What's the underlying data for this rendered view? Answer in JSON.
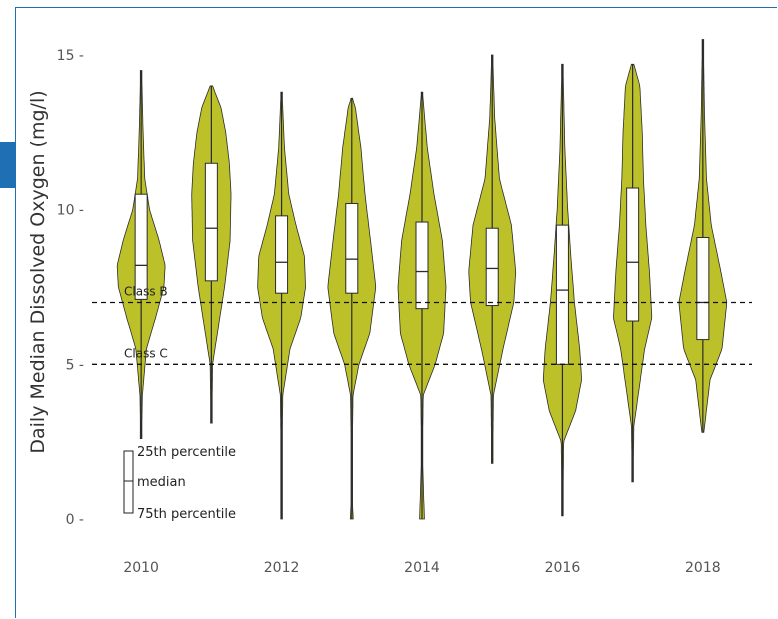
{
  "chart_data": {
    "type": "violin",
    "title": "",
    "xlabel": "",
    "ylabel": "Daily Median Dissolved Oxygen (mg/l)",
    "ylim": [
      0,
      16
    ],
    "xlim": [
      2009.3,
      2018.7
    ],
    "yticks": [
      0,
      5,
      10,
      15
    ],
    "ytick_labels": [
      "0 -",
      "5 -",
      "10 -",
      "15 -"
    ],
    "xticks": [
      2010,
      2012,
      2014,
      2016,
      2018
    ],
    "xtick_labels": [
      "2010",
      "2012",
      "2014",
      "2016",
      "2018"
    ],
    "grid": false,
    "fill_color": "#bcc12a",
    "reference_lines": [
      {
        "label": "Class B",
        "y": 7
      },
      {
        "label": "Class C",
        "y": 5
      }
    ],
    "legend": {
      "top": "25th percentile",
      "middle": "median",
      "bottom": "75th percentile",
      "placement": "bottom-left"
    },
    "series": [
      {
        "x": 2010,
        "min": 2.6,
        "max": 14.5,
        "q1": 7.1,
        "median": 8.2,
        "q3": 10.5,
        "profile": [
          [
            2.6,
            0.02
          ],
          [
            4.0,
            0.05
          ],
          [
            5.5,
            0.22
          ],
          [
            6.5,
            0.6
          ],
          [
            7.5,
            0.95
          ],
          [
            8.2,
            1.0
          ],
          [
            9.0,
            0.75
          ],
          [
            10.0,
            0.35
          ],
          [
            11.0,
            0.15
          ],
          [
            12.5,
            0.08
          ],
          [
            14.5,
            0.02
          ]
        ]
      },
      {
        "x": 2011,
        "min": 3.1,
        "max": 14.0,
        "q1": 7.7,
        "median": 9.4,
        "q3": 11.5,
        "profile": [
          [
            3.1,
            0.02
          ],
          [
            5.0,
            0.05
          ],
          [
            6.0,
            0.25
          ],
          [
            7.5,
            0.55
          ],
          [
            9.0,
            0.78
          ],
          [
            10.5,
            0.82
          ],
          [
            11.5,
            0.75
          ],
          [
            12.5,
            0.6
          ],
          [
            13.3,
            0.4
          ],
          [
            14.0,
            0.05
          ]
        ]
      },
      {
        "x": 2012,
        "min": 0.0,
        "max": 13.8,
        "q1": 7.3,
        "median": 8.3,
        "q3": 9.8,
        "profile": [
          [
            0.0,
            0.02
          ],
          [
            2.0,
            0.02
          ],
          [
            4.0,
            0.05
          ],
          [
            5.5,
            0.35
          ],
          [
            6.5,
            0.8
          ],
          [
            7.5,
            1.0
          ],
          [
            8.5,
            0.95
          ],
          [
            9.5,
            0.6
          ],
          [
            10.5,
            0.3
          ],
          [
            12.0,
            0.12
          ],
          [
            13.8,
            0.02
          ]
        ]
      },
      {
        "x": 2013,
        "min": 0.0,
        "max": 13.6,
        "q1": 7.3,
        "median": 8.4,
        "q3": 10.2,
        "profile": [
          [
            0.0,
            0.06
          ],
          [
            0.5,
            0.03
          ],
          [
            2.0,
            0.02
          ],
          [
            4.0,
            0.05
          ],
          [
            5.0,
            0.3
          ],
          [
            6.0,
            0.75
          ],
          [
            7.5,
            1.0
          ],
          [
            9.0,
            0.78
          ],
          [
            10.5,
            0.55
          ],
          [
            12.0,
            0.38
          ],
          [
            13.3,
            0.15
          ],
          [
            13.6,
            0.02
          ]
        ]
      },
      {
        "x": 2014,
        "min": 0.0,
        "max": 13.8,
        "q1": 6.8,
        "median": 8.0,
        "q3": 9.6,
        "profile": [
          [
            0.0,
            0.1
          ],
          [
            1.0,
            0.06
          ],
          [
            2.0,
            0.02
          ],
          [
            4.0,
            0.05
          ],
          [
            5.0,
            0.55
          ],
          [
            6.0,
            0.9
          ],
          [
            7.5,
            1.0
          ],
          [
            9.0,
            0.85
          ],
          [
            10.5,
            0.5
          ],
          [
            12.0,
            0.22
          ],
          [
            13.8,
            0.02
          ]
        ]
      },
      {
        "x": 2015,
        "min": 1.8,
        "max": 15.0,
        "q1": 6.9,
        "median": 8.1,
        "q3": 9.4,
        "profile": [
          [
            1.8,
            0.02
          ],
          [
            4.0,
            0.05
          ],
          [
            5.5,
            0.45
          ],
          [
            7.0,
            0.9
          ],
          [
            8.0,
            0.98
          ],
          [
            9.5,
            0.8
          ],
          [
            11.0,
            0.3
          ],
          [
            13.0,
            0.1
          ],
          [
            15.0,
            0.02
          ]
        ]
      },
      {
        "x": 2016,
        "min": 0.1,
        "max": 14.7,
        "q1": 5.0,
        "median": 7.4,
        "q3": 9.5,
        "profile": [
          [
            0.1,
            0.02
          ],
          [
            2.5,
            0.05
          ],
          [
            3.5,
            0.55
          ],
          [
            4.5,
            0.8
          ],
          [
            5.5,
            0.72
          ],
          [
            7.0,
            0.5
          ],
          [
            8.5,
            0.35
          ],
          [
            10.0,
            0.22
          ],
          [
            12.0,
            0.1
          ],
          [
            14.7,
            0.02
          ]
        ]
      },
      {
        "x": 2017,
        "min": 1.2,
        "max": 14.7,
        "q1": 6.4,
        "median": 8.3,
        "q3": 10.7,
        "profile": [
          [
            1.2,
            0.02
          ],
          [
            3.0,
            0.05
          ],
          [
            5.5,
            0.5
          ],
          [
            6.5,
            0.8
          ],
          [
            8.0,
            0.7
          ],
          [
            9.5,
            0.55
          ],
          [
            11.0,
            0.45
          ],
          [
            12.5,
            0.4
          ],
          [
            14.0,
            0.3
          ],
          [
            14.7,
            0.05
          ]
        ]
      },
      {
        "x": 2018,
        "min": 2.8,
        "max": 15.5,
        "q1": 5.8,
        "median": 7.0,
        "q3": 9.1,
        "profile": [
          [
            2.8,
            0.04
          ],
          [
            4.5,
            0.3
          ],
          [
            5.5,
            0.8
          ],
          [
            7.0,
            1.0
          ],
          [
            8.0,
            0.75
          ],
          [
            9.5,
            0.35
          ],
          [
            11.0,
            0.15
          ],
          [
            13.0,
            0.07
          ],
          [
            15.5,
            0.02
          ]
        ]
      }
    ]
  }
}
